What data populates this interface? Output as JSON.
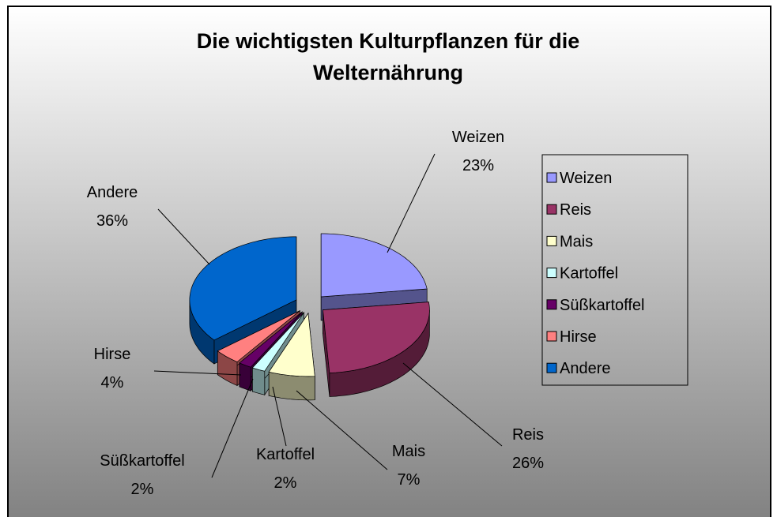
{
  "chart_data": {
    "type": "pie",
    "title": "Die wichtigsten Kulturpflanzen für die Welternährung",
    "categories": [
      "Weizen",
      "Reis",
      "Mais",
      "Kartoffel",
      "Süßkartoffel",
      "Hirse",
      "Andere"
    ],
    "values": [
      23,
      26,
      7,
      2,
      2,
      4,
      36
    ],
    "value_labels": [
      "23%",
      "26%",
      "7%",
      "2%",
      "2%",
      "4%",
      "36%"
    ],
    "colors": [
      "#9999ff",
      "#993366",
      "#ffffcc",
      "#ccffff",
      "#660066",
      "#ff8080",
      "#0066cc"
    ],
    "legend": "right"
  }
}
